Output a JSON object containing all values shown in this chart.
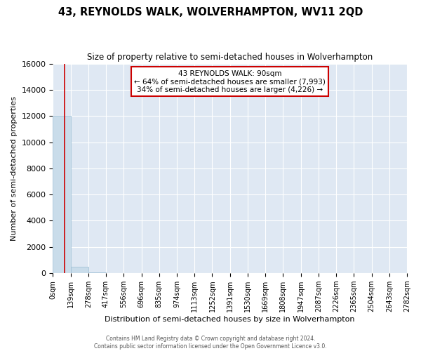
{
  "title": "43, REYNOLDS WALK, WOLVERHAMPTON, WV11 2QD",
  "subtitle": "Size of property relative to semi-detached houses in Wolverhampton",
  "xlabel": "Distribution of semi-detached houses by size in Wolverhampton",
  "ylabel": "Number of semi-detached properties",
  "property_size": 90,
  "property_label": "43 REYNOLDS WALK: 90sqm",
  "pct_smaller": 64,
  "pct_larger": 34,
  "n_smaller": 7993,
  "n_larger": 4226,
  "bar_color": "#c9dcea",
  "bar_edge_color": "#9bbdd4",
  "annotation_border_color": "#cc0000",
  "vline_color": "#cc0000",
  "bin_edges": [
    0,
    139,
    278,
    417,
    556,
    696,
    835,
    974,
    1113,
    1252,
    1391,
    1530,
    1669,
    1808,
    1947,
    2087,
    2226,
    2365,
    2504,
    2643,
    2782
  ],
  "bin_labels": [
    "0sqm",
    "139sqm",
    "278sqm",
    "417sqm",
    "556sqm",
    "696sqm",
    "835sqm",
    "974sqm",
    "1113sqm",
    "1252sqm",
    "1391sqm",
    "1530sqm",
    "1669sqm",
    "1808sqm",
    "1947sqm",
    "2087sqm",
    "2226sqm",
    "2365sqm",
    "2504sqm",
    "2643sqm",
    "2782sqm"
  ],
  "bar_heights": [
    12000,
    500,
    50,
    20,
    10,
    8,
    5,
    4,
    3,
    3,
    2,
    2,
    1,
    1,
    1,
    1,
    1,
    1,
    0,
    0
  ],
  "ylim": [
    0,
    16000
  ],
  "yticks": [
    0,
    2000,
    4000,
    6000,
    8000,
    10000,
    12000,
    14000,
    16000
  ],
  "background_color": "#dfe8f3",
  "footer_line1": "Contains HM Land Registry data © Crown copyright and database right 2024.",
  "footer_line2": "Contains public sector information licensed under the Open Government Licence v3.0."
}
